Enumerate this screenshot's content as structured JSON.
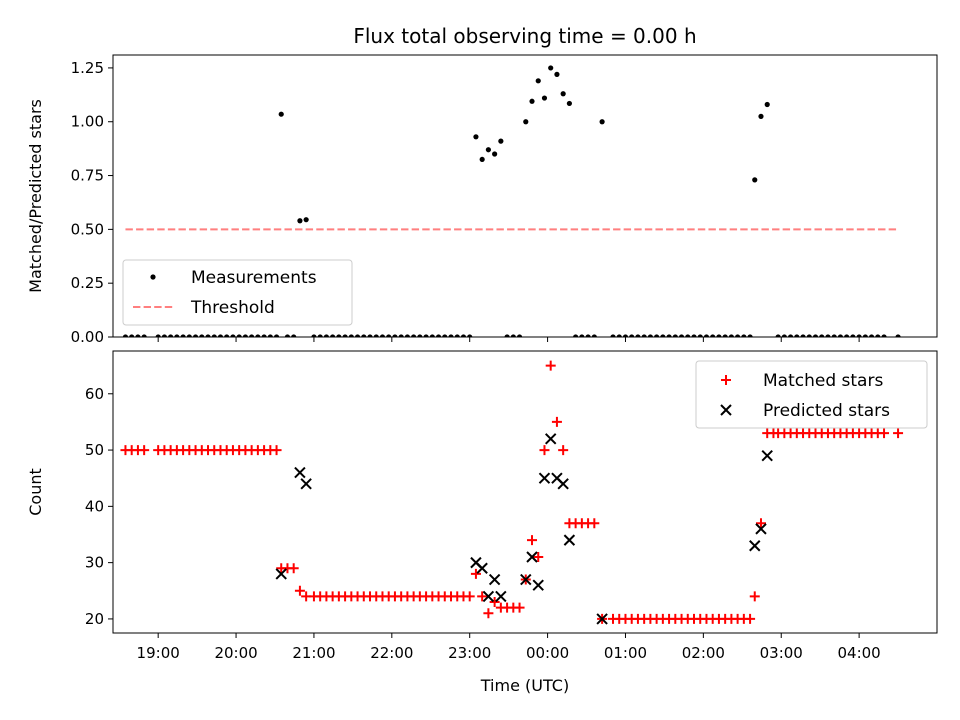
{
  "chart_data": [
    {
      "type": "scatter",
      "title": "Flux total observing time = 0.00 h",
      "xlabel": "",
      "ylabel": "Matched/Predicted stars",
      "ylim": [
        0,
        1.31
      ],
      "yticks": [
        0.0,
        0.25,
        0.5,
        0.75,
        1.0,
        1.25
      ],
      "ytick_labels": [
        "0.00",
        "0.25",
        "0.50",
        "0.75",
        "1.00",
        "1.25"
      ],
      "x_unit": "hours since 18:00 UTC",
      "xlim": [
        0.42,
        11.0
      ],
      "legend": {
        "position": "bottom-left",
        "entries": [
          "Measurements",
          "Threshold"
        ]
      },
      "series": [
        {
          "name": "Measurements",
          "color": "#000000",
          "marker": "dot",
          "points": [
            [
              0.58,
              0
            ],
            [
              0.66,
              0
            ],
            [
              0.74,
              0
            ],
            [
              0.82,
              0
            ],
            [
              1.0,
              0
            ],
            [
              1.08,
              0
            ],
            [
              1.16,
              0
            ],
            [
              1.24,
              0
            ],
            [
              1.32,
              0
            ],
            [
              1.4,
              0
            ],
            [
              1.48,
              0
            ],
            [
              1.56,
              0
            ],
            [
              1.64,
              0
            ],
            [
              1.72,
              0
            ],
            [
              1.8,
              0
            ],
            [
              1.88,
              0
            ],
            [
              1.96,
              0
            ],
            [
              2.04,
              0
            ],
            [
              2.12,
              0
            ],
            [
              2.2,
              0
            ],
            [
              2.28,
              0
            ],
            [
              2.36,
              0
            ],
            [
              2.44,
              0
            ],
            [
              2.52,
              0
            ],
            [
              2.58,
              1.035
            ],
            [
              2.66,
              0
            ],
            [
              2.74,
              0
            ],
            [
              2.82,
              0.54
            ],
            [
              2.9,
              0.545
            ],
            [
              3.0,
              0
            ],
            [
              3.08,
              0
            ],
            [
              3.16,
              0
            ],
            [
              3.24,
              0
            ],
            [
              3.32,
              0
            ],
            [
              3.4,
              0
            ],
            [
              3.48,
              0
            ],
            [
              3.56,
              0
            ],
            [
              3.64,
              0
            ],
            [
              3.72,
              0
            ],
            [
              3.8,
              0
            ],
            [
              3.88,
              0
            ],
            [
              3.96,
              0
            ],
            [
              4.04,
              0
            ],
            [
              4.12,
              0
            ],
            [
              4.2,
              0
            ],
            [
              4.28,
              0
            ],
            [
              4.36,
              0
            ],
            [
              4.44,
              0
            ],
            [
              4.52,
              0
            ],
            [
              4.6,
              0
            ],
            [
              4.68,
              0
            ],
            [
              4.76,
              0
            ],
            [
              4.84,
              0
            ],
            [
              4.92,
              0
            ],
            [
              5.0,
              0
            ],
            [
              5.08,
              0.93
            ],
            [
              5.16,
              0.825
            ],
            [
              5.24,
              0.87
            ],
            [
              5.32,
              0.85
            ],
            [
              5.4,
              0.91
            ],
            [
              5.48,
              0
            ],
            [
              5.56,
              0
            ],
            [
              5.64,
              0
            ],
            [
              5.72,
              1.0
            ],
            [
              5.8,
              1.095
            ],
            [
              5.88,
              1.19
            ],
            [
              5.96,
              1.11
            ],
            [
              6.04,
              1.25
            ],
            [
              6.12,
              1.22
            ],
            [
              6.2,
              1.13
            ],
            [
              6.28,
              1.085
            ],
            [
              6.36,
              0
            ],
            [
              6.44,
              0
            ],
            [
              6.52,
              0
            ],
            [
              6.6,
              0
            ],
            [
              6.7,
              1.0
            ],
            [
              6.84,
              0
            ],
            [
              6.92,
              0
            ],
            [
              7.0,
              0
            ],
            [
              7.08,
              0
            ],
            [
              7.16,
              0
            ],
            [
              7.24,
              0
            ],
            [
              7.32,
              0
            ],
            [
              7.4,
              0
            ],
            [
              7.48,
              0
            ],
            [
              7.56,
              0
            ],
            [
              7.64,
              0
            ],
            [
              7.72,
              0
            ],
            [
              7.8,
              0
            ],
            [
              7.88,
              0
            ],
            [
              7.96,
              0
            ],
            [
              8.04,
              0
            ],
            [
              8.12,
              0
            ],
            [
              8.2,
              0
            ],
            [
              8.28,
              0
            ],
            [
              8.36,
              0
            ],
            [
              8.44,
              0
            ],
            [
              8.52,
              0
            ],
            [
              8.6,
              0
            ],
            [
              8.66,
              0.73
            ],
            [
              8.74,
              1.025
            ],
            [
              8.82,
              1.08
            ],
            [
              8.96,
              0
            ],
            [
              9.04,
              0
            ],
            [
              9.12,
              0
            ],
            [
              9.2,
              0
            ],
            [
              9.28,
              0
            ],
            [
              9.36,
              0
            ],
            [
              9.44,
              0
            ],
            [
              9.52,
              0
            ],
            [
              9.6,
              0
            ],
            [
              9.68,
              0
            ],
            [
              9.76,
              0
            ],
            [
              9.84,
              0
            ],
            [
              9.92,
              0
            ],
            [
              10.0,
              0
            ],
            [
              10.08,
              0
            ],
            [
              10.16,
              0
            ],
            [
              10.24,
              0
            ],
            [
              10.32,
              0
            ],
            [
              10.5,
              0
            ]
          ]
        },
        {
          "name": "Threshold",
          "color": "#ff7f7f",
          "style": "dashed",
          "points": [
            [
              0.58,
              0.5
            ],
            [
              10.5,
              0.5
            ]
          ]
        }
      ]
    },
    {
      "type": "scatter",
      "title": "",
      "xlabel": "Time (UTC)",
      "ylabel": "Count",
      "ylim": [
        17.5,
        67.6
      ],
      "yticks": [
        20,
        30,
        40,
        50,
        60
      ],
      "ytick_labels": [
        "20",
        "30",
        "40",
        "50",
        "60"
      ],
      "x_unit": "hours since 18:00 UTC",
      "xlim": [
        0.42,
        11.0
      ],
      "xticks": [
        1,
        2,
        3,
        4,
        5,
        6,
        7,
        8,
        9,
        10
      ],
      "xtick_labels": [
        "19:00",
        "20:00",
        "21:00",
        "22:00",
        "23:00",
        "00:00",
        "01:00",
        "02:00",
        "03:00",
        "04:00"
      ],
      "legend": {
        "position": "top-right",
        "entries": [
          "Matched stars",
          "Predicted stars"
        ]
      },
      "series": [
        {
          "name": "Matched stars",
          "color": "#ff0000",
          "marker": "plus",
          "points": [
            [
              0.58,
              50
            ],
            [
              0.66,
              50
            ],
            [
              0.74,
              50
            ],
            [
              0.82,
              50
            ],
            [
              1.0,
              50
            ],
            [
              1.08,
              50
            ],
            [
              1.16,
              50
            ],
            [
              1.24,
              50
            ],
            [
              1.32,
              50
            ],
            [
              1.4,
              50
            ],
            [
              1.48,
              50
            ],
            [
              1.56,
              50
            ],
            [
              1.64,
              50
            ],
            [
              1.72,
              50
            ],
            [
              1.8,
              50
            ],
            [
              1.88,
              50
            ],
            [
              1.96,
              50
            ],
            [
              2.04,
              50
            ],
            [
              2.12,
              50
            ],
            [
              2.2,
              50
            ],
            [
              2.28,
              50
            ],
            [
              2.36,
              50
            ],
            [
              2.44,
              50
            ],
            [
              2.52,
              50
            ],
            [
              2.58,
              29
            ],
            [
              2.66,
              29
            ],
            [
              2.74,
              29
            ],
            [
              2.82,
              25
            ],
            [
              2.9,
              24
            ],
            [
              3.0,
              24
            ],
            [
              3.08,
              24
            ],
            [
              3.16,
              24
            ],
            [
              3.24,
              24
            ],
            [
              3.32,
              24
            ],
            [
              3.4,
              24
            ],
            [
              3.48,
              24
            ],
            [
              3.56,
              24
            ],
            [
              3.64,
              24
            ],
            [
              3.72,
              24
            ],
            [
              3.8,
              24
            ],
            [
              3.88,
              24
            ],
            [
              3.96,
              24
            ],
            [
              4.04,
              24
            ],
            [
              4.12,
              24
            ],
            [
              4.2,
              24
            ],
            [
              4.28,
              24
            ],
            [
              4.36,
              24
            ],
            [
              4.44,
              24
            ],
            [
              4.52,
              24
            ],
            [
              4.6,
              24
            ],
            [
              4.68,
              24
            ],
            [
              4.76,
              24
            ],
            [
              4.84,
              24
            ],
            [
              4.92,
              24
            ],
            [
              5.0,
              24
            ],
            [
              5.08,
              28
            ],
            [
              5.16,
              24
            ],
            [
              5.24,
              21
            ],
            [
              5.32,
              23
            ],
            [
              5.4,
              22
            ],
            [
              5.48,
              22
            ],
            [
              5.56,
              22
            ],
            [
              5.64,
              22
            ],
            [
              5.72,
              27
            ],
            [
              5.8,
              34
            ],
            [
              5.88,
              31
            ],
            [
              5.96,
              50
            ],
            [
              6.04,
              65
            ],
            [
              6.12,
              55
            ],
            [
              6.2,
              50
            ],
            [
              6.28,
              37
            ],
            [
              6.36,
              37
            ],
            [
              6.44,
              37
            ],
            [
              6.52,
              37
            ],
            [
              6.6,
              37
            ],
            [
              6.7,
              20
            ],
            [
              6.84,
              20
            ],
            [
              6.92,
              20
            ],
            [
              7.0,
              20
            ],
            [
              7.08,
              20
            ],
            [
              7.16,
              20
            ],
            [
              7.24,
              20
            ],
            [
              7.32,
              20
            ],
            [
              7.4,
              20
            ],
            [
              7.48,
              20
            ],
            [
              7.56,
              20
            ],
            [
              7.64,
              20
            ],
            [
              7.72,
              20
            ],
            [
              7.8,
              20
            ],
            [
              7.88,
              20
            ],
            [
              7.96,
              20
            ],
            [
              8.04,
              20
            ],
            [
              8.12,
              20
            ],
            [
              8.2,
              20
            ],
            [
              8.28,
              20
            ],
            [
              8.36,
              20
            ],
            [
              8.44,
              20
            ],
            [
              8.52,
              20
            ],
            [
              8.6,
              20
            ],
            [
              8.66,
              24
            ],
            [
              8.74,
              37
            ],
            [
              8.82,
              53
            ],
            [
              8.9,
              53
            ],
            [
              8.96,
              53
            ],
            [
              9.04,
              53
            ],
            [
              9.12,
              53
            ],
            [
              9.2,
              53
            ],
            [
              9.28,
              53
            ],
            [
              9.36,
              53
            ],
            [
              9.44,
              53
            ],
            [
              9.52,
              53
            ],
            [
              9.6,
              53
            ],
            [
              9.68,
              53
            ],
            [
              9.76,
              53
            ],
            [
              9.84,
              53
            ],
            [
              9.92,
              53
            ],
            [
              10.0,
              53
            ],
            [
              10.08,
              53
            ],
            [
              10.16,
              53
            ],
            [
              10.24,
              53
            ],
            [
              10.32,
              53
            ],
            [
              10.5,
              53
            ]
          ]
        },
        {
          "name": "Predicted stars",
          "color": "#000000",
          "marker": "x",
          "points": [
            [
              2.58,
              28
            ],
            [
              2.82,
              46
            ],
            [
              2.9,
              44
            ],
            [
              5.08,
              30
            ],
            [
              5.16,
              29
            ],
            [
              5.24,
              24
            ],
            [
              5.32,
              27
            ],
            [
              5.4,
              24
            ],
            [
              5.72,
              27
            ],
            [
              5.8,
              31
            ],
            [
              5.88,
              26
            ],
            [
              5.96,
              45
            ],
            [
              6.04,
              52
            ],
            [
              6.12,
              45
            ],
            [
              6.2,
              44
            ],
            [
              6.28,
              34
            ],
            [
              6.7,
              20
            ],
            [
              8.66,
              33
            ],
            [
              8.74,
              36
            ],
            [
              8.82,
              49
            ]
          ]
        }
      ]
    }
  ]
}
